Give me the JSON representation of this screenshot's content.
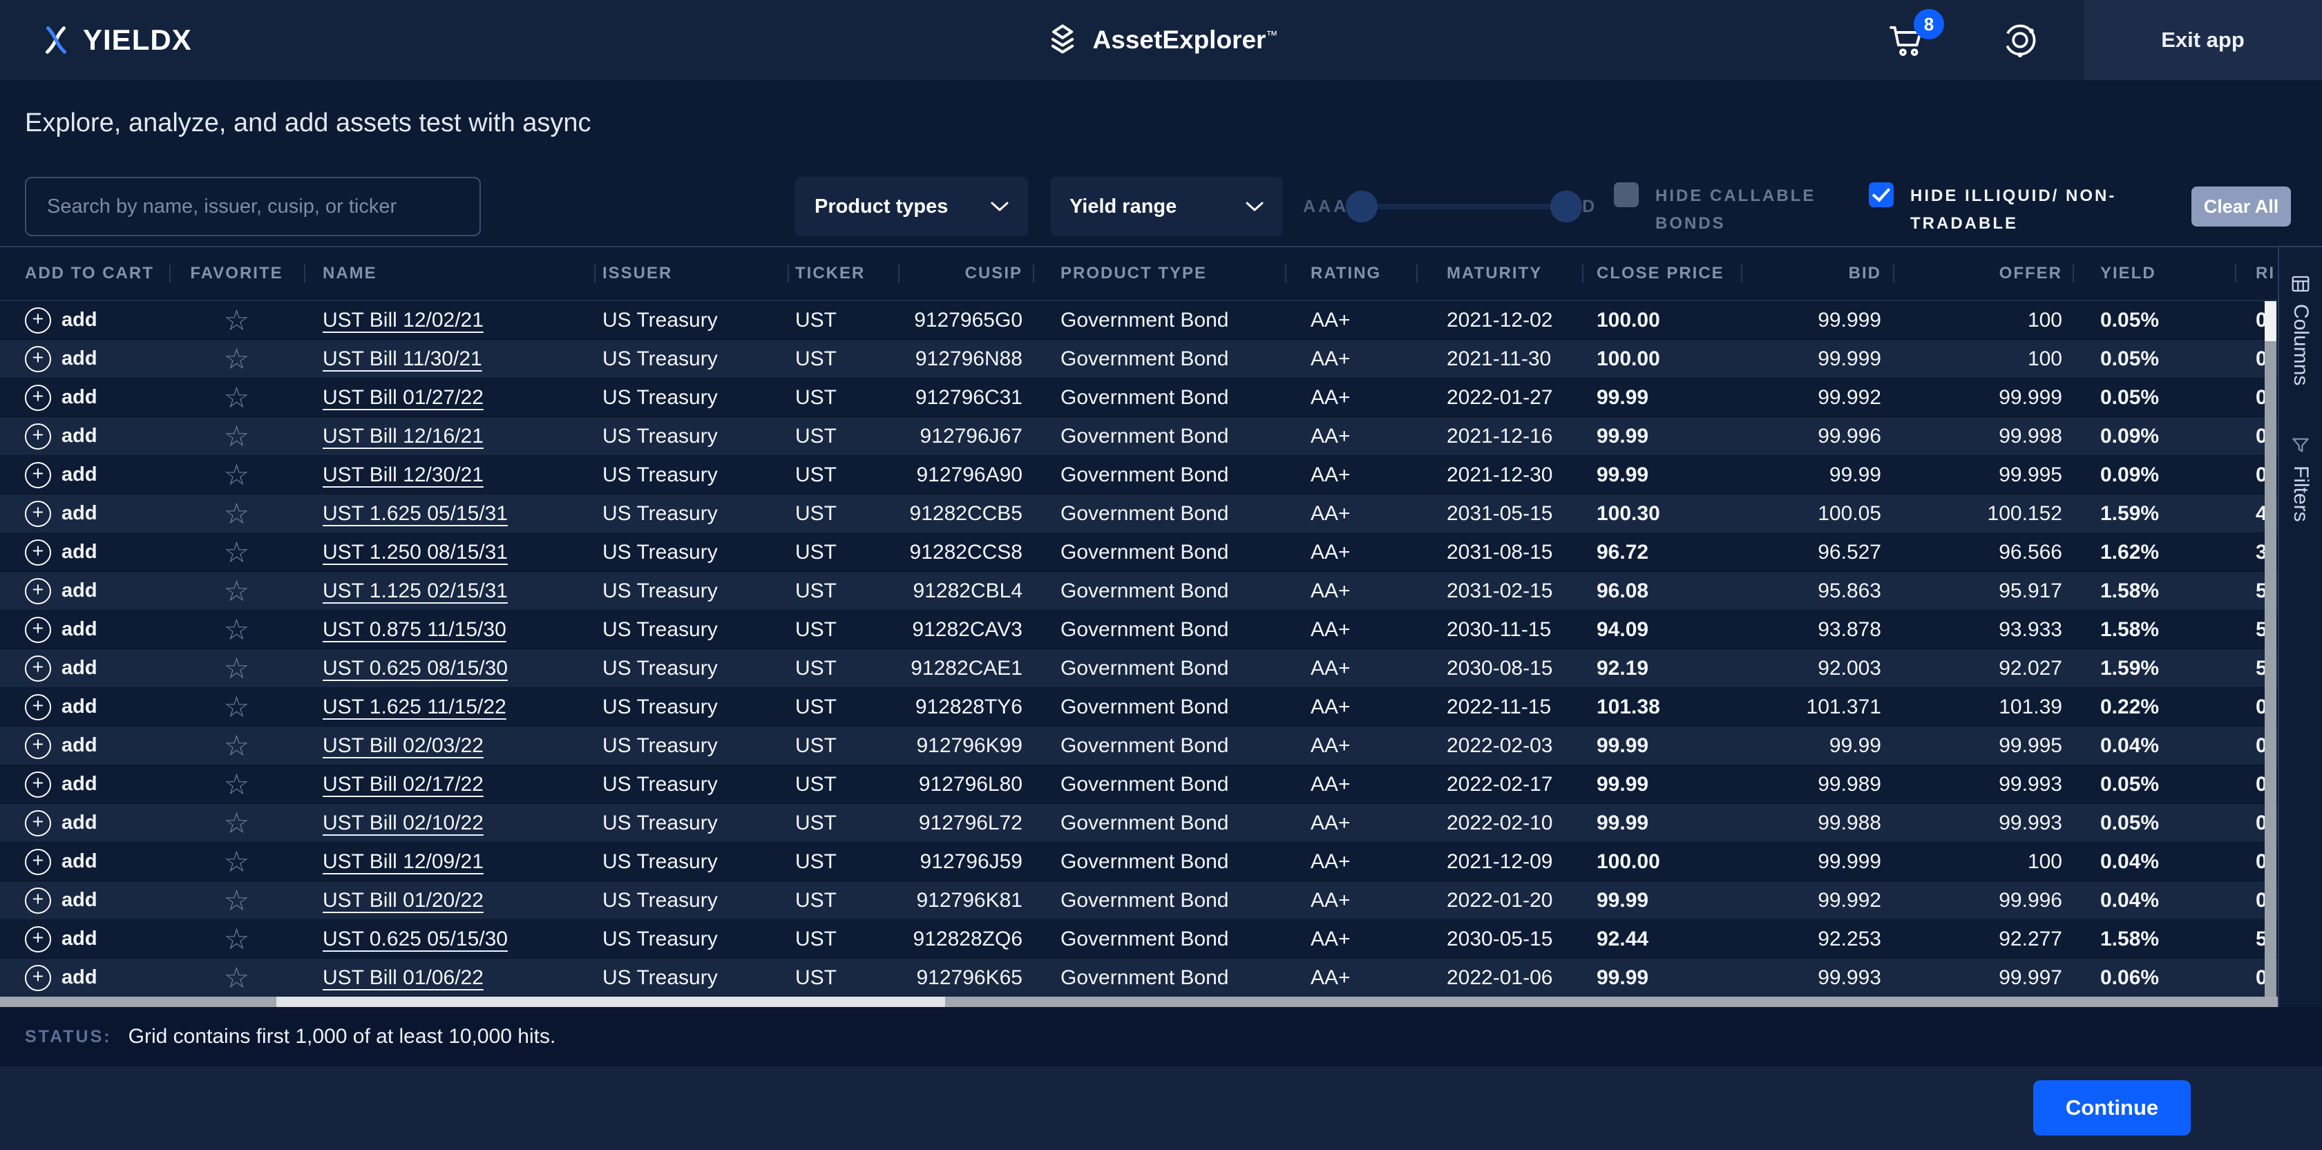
{
  "nav": {
    "brand": "YIELDX",
    "app_name": "AssetExplorer",
    "app_name_tm": "™",
    "cart_count": "8",
    "exit_label": "Exit app"
  },
  "hero": {
    "title": "Explore, analyze, and add assets test with async"
  },
  "filters": {
    "search_placeholder": "Search by name, issuer, cusip, or ticker",
    "product_types_label": "Product types",
    "yield_range_label": "Yield range",
    "rating_slider": {
      "min_label": "AAA",
      "max_label": "D"
    },
    "hide_callable": {
      "label": "HIDE CALLABLE BONDS",
      "checked": false
    },
    "hide_illiquid": {
      "label": "HIDE ILLIQUID/ NON-TRADABLE",
      "checked": true
    },
    "clear_all_label": "Clear All"
  },
  "table": {
    "add_label": "add",
    "columns": [
      "ADD TO CART",
      "FAVORITE",
      "NAME",
      "ISSUER",
      "TICKER",
      "CUSIP",
      "PRODUCT TYPE",
      "RATING",
      "MATURITY",
      "CLOSE PRICE",
      "BID",
      "OFFER",
      "YIELD",
      "RI"
    ],
    "rows": [
      {
        "name": "UST Bill 12/02/21",
        "issuer": "US Treasury",
        "ticker": "UST",
        "cusip": "9127965G0",
        "product_type": "Government Bond",
        "rating": "AA+",
        "maturity": "2021-12-02",
        "close_price": "100.00",
        "bid": "99.999",
        "offer": "100",
        "yield": "0.05%",
        "risk_partial": "0"
      },
      {
        "name": "UST Bill 11/30/21",
        "issuer": "US Treasury",
        "ticker": "UST",
        "cusip": "912796N88",
        "product_type": "Government Bond",
        "rating": "AA+",
        "maturity": "2021-11-30",
        "close_price": "100.00",
        "bid": "99.999",
        "offer": "100",
        "yield": "0.05%",
        "risk_partial": "0"
      },
      {
        "name": "UST Bill 01/27/22",
        "issuer": "US Treasury",
        "ticker": "UST",
        "cusip": "912796C31",
        "product_type": "Government Bond",
        "rating": "AA+",
        "maturity": "2022-01-27",
        "close_price": "99.99",
        "bid": "99.992",
        "offer": "99.999",
        "yield": "0.05%",
        "risk_partial": "0"
      },
      {
        "name": "UST Bill 12/16/21",
        "issuer": "US Treasury",
        "ticker": "UST",
        "cusip": "912796J67",
        "product_type": "Government Bond",
        "rating": "AA+",
        "maturity": "2021-12-16",
        "close_price": "99.99",
        "bid": "99.996",
        "offer": "99.998",
        "yield": "0.09%",
        "risk_partial": "0"
      },
      {
        "name": "UST Bill 12/30/21",
        "issuer": "US Treasury",
        "ticker": "UST",
        "cusip": "912796A90",
        "product_type": "Government Bond",
        "rating": "AA+",
        "maturity": "2021-12-30",
        "close_price": "99.99",
        "bid": "99.99",
        "offer": "99.995",
        "yield": "0.09%",
        "risk_partial": "0"
      },
      {
        "name": "UST 1.625 05/15/31",
        "issuer": "US Treasury",
        "ticker": "UST",
        "cusip": "91282CCB5",
        "product_type": "Government Bond",
        "rating": "AA+",
        "maturity": "2031-05-15",
        "close_price": "100.30",
        "bid": "100.05",
        "offer": "100.152",
        "yield": "1.59%",
        "risk_partial": "4"
      },
      {
        "name": "UST 1.250 08/15/31",
        "issuer": "US Treasury",
        "ticker": "UST",
        "cusip": "91282CCS8",
        "product_type": "Government Bond",
        "rating": "AA+",
        "maturity": "2031-08-15",
        "close_price": "96.72",
        "bid": "96.527",
        "offer": "96.566",
        "yield": "1.62%",
        "risk_partial": "3"
      },
      {
        "name": "UST 1.125 02/15/31",
        "issuer": "US Treasury",
        "ticker": "UST",
        "cusip": "91282CBL4",
        "product_type": "Government Bond",
        "rating": "AA+",
        "maturity": "2031-02-15",
        "close_price": "96.08",
        "bid": "95.863",
        "offer": "95.917",
        "yield": "1.58%",
        "risk_partial": "5"
      },
      {
        "name": "UST 0.875 11/15/30",
        "issuer": "US Treasury",
        "ticker": "UST",
        "cusip": "91282CAV3",
        "product_type": "Government Bond",
        "rating": "AA+",
        "maturity": "2030-11-15",
        "close_price": "94.09",
        "bid": "93.878",
        "offer": "93.933",
        "yield": "1.58%",
        "risk_partial": "5"
      },
      {
        "name": "UST 0.625 08/15/30",
        "issuer": "US Treasury",
        "ticker": "UST",
        "cusip": "91282CAE1",
        "product_type": "Government Bond",
        "rating": "AA+",
        "maturity": "2030-08-15",
        "close_price": "92.19",
        "bid": "92.003",
        "offer": "92.027",
        "yield": "1.59%",
        "risk_partial": "5"
      },
      {
        "name": "UST 1.625 11/15/22",
        "issuer": "US Treasury",
        "ticker": "UST",
        "cusip": "912828TY6",
        "product_type": "Government Bond",
        "rating": "AA+",
        "maturity": "2022-11-15",
        "close_price": "101.38",
        "bid": "101.371",
        "offer": "101.39",
        "yield": "0.22%",
        "risk_partial": "0"
      },
      {
        "name": "UST Bill 02/03/22",
        "issuer": "US Treasury",
        "ticker": "UST",
        "cusip": "912796K99",
        "product_type": "Government Bond",
        "rating": "AA+",
        "maturity": "2022-02-03",
        "close_price": "99.99",
        "bid": "99.99",
        "offer": "99.995",
        "yield": "0.04%",
        "risk_partial": "0"
      },
      {
        "name": "UST Bill 02/17/22",
        "issuer": "US Treasury",
        "ticker": "UST",
        "cusip": "912796L80",
        "product_type": "Government Bond",
        "rating": "AA+",
        "maturity": "2022-02-17",
        "close_price": "99.99",
        "bid": "99.989",
        "offer": "99.993",
        "yield": "0.05%",
        "risk_partial": "0"
      },
      {
        "name": "UST Bill 02/10/22",
        "issuer": "US Treasury",
        "ticker": "UST",
        "cusip": "912796L72",
        "product_type": "Government Bond",
        "rating": "AA+",
        "maturity": "2022-02-10",
        "close_price": "99.99",
        "bid": "99.988",
        "offer": "99.993",
        "yield": "0.05%",
        "risk_partial": "0"
      },
      {
        "name": "UST Bill 12/09/21",
        "issuer": "US Treasury",
        "ticker": "UST",
        "cusip": "912796J59",
        "product_type": "Government Bond",
        "rating": "AA+",
        "maturity": "2021-12-09",
        "close_price": "100.00",
        "bid": "99.999",
        "offer": "100",
        "yield": "0.04%",
        "risk_partial": "0"
      },
      {
        "name": "UST Bill 01/20/22",
        "issuer": "US Treasury",
        "ticker": "UST",
        "cusip": "912796K81",
        "product_type": "Government Bond",
        "rating": "AA+",
        "maturity": "2022-01-20",
        "close_price": "99.99",
        "bid": "99.992",
        "offer": "99.996",
        "yield": "0.04%",
        "risk_partial": "0"
      },
      {
        "name": "UST 0.625 05/15/30",
        "issuer": "US Treasury",
        "ticker": "UST",
        "cusip": "912828ZQ6",
        "product_type": "Government Bond",
        "rating": "AA+",
        "maturity": "2030-05-15",
        "close_price": "92.44",
        "bid": "92.253",
        "offer": "92.277",
        "yield": "1.58%",
        "risk_partial": "5"
      },
      {
        "name": "UST Bill 01/06/22",
        "issuer": "US Treasury",
        "ticker": "UST",
        "cusip": "912796K65",
        "product_type": "Government Bond",
        "rating": "AA+",
        "maturity": "2022-01-06",
        "close_price": "99.99",
        "bid": "99.993",
        "offer": "99.997",
        "yield": "0.06%",
        "risk_partial": "0"
      }
    ]
  },
  "side_panel": {
    "columns_label": "Columns",
    "filters_label": "Filters"
  },
  "status": {
    "label": "STATUS:",
    "message": "Grid contains first 1,000 of at least 10,000 hits."
  },
  "footer": {
    "continue_label": "Continue"
  },
  "colors": {
    "accent_blue": "#0d5ffe",
    "row_alt": "#182742",
    "clear_all_bg": "#8e9cbd",
    "nav_bg": "#13223d",
    "page_bg": "#0c1a33"
  }
}
